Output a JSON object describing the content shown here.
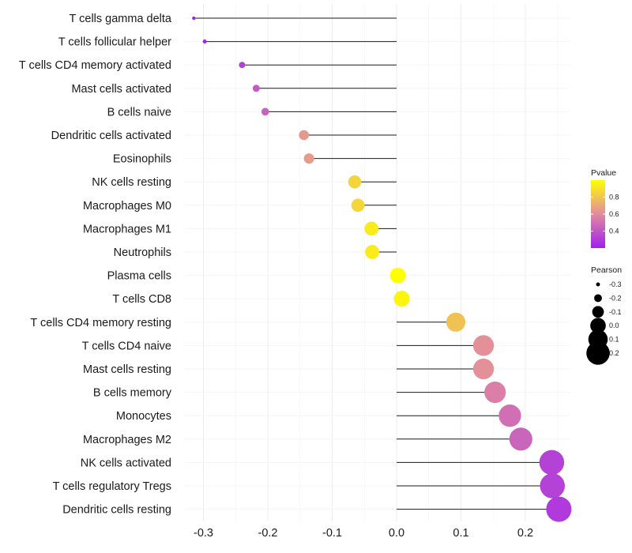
{
  "chart_data": {
    "type": "lollipop",
    "title": "",
    "xlabel": "",
    "ylabel": "",
    "xlim": [
      -0.33,
      0.27
    ],
    "xticks": [
      -0.3,
      -0.2,
      -0.1,
      0.0,
      0.1,
      0.2
    ],
    "xtick_labels": [
      "-0.3",
      "-0.2",
      "-0.1",
      "0.0",
      "0.1",
      "0.2"
    ],
    "categories": [
      "T cells gamma delta",
      "T cells follicular helper",
      "T cells CD4 memory activated",
      "Mast cells activated",
      "B cells naive",
      "Dendritic cells activated",
      "Eosinophils",
      "NK cells resting",
      "Macrophages M0",
      "Macrophages M1",
      "Neutrophils",
      "Plasma cells",
      "T cells CD8",
      "T cells CD4 memory resting",
      "T cells CD4 naive",
      "Mast cells resting",
      "B cells memory",
      "Monocytes",
      "Macrophages M2",
      "NK cells activated",
      "T cells regulatory  Tregs ",
      "Dendritic cells resting"
    ],
    "pearson": [
      -0.315,
      -0.298,
      -0.24,
      -0.218,
      -0.204,
      -0.144,
      -0.136,
      -0.065,
      -0.06,
      -0.039,
      -0.038,
      0.002,
      0.008,
      0.092,
      0.135,
      0.135,
      0.153,
      0.176,
      0.193,
      0.241,
      0.242,
      0.252
    ],
    "pvalue": [
      0.2,
      0.23,
      0.32,
      0.42,
      0.45,
      0.65,
      0.66,
      0.85,
      0.86,
      0.93,
      0.93,
      1.0,
      0.97,
      0.79,
      0.62,
      0.62,
      0.56,
      0.5,
      0.46,
      0.33,
      0.33,
      0.3
    ],
    "color_legend": {
      "title": "Pvalue",
      "ticks": [
        0.4,
        0.6,
        0.8
      ],
      "tick_labels": [
        "0.4",
        "0.6",
        "0.8"
      ],
      "range": [
        0.2,
        1.0
      ],
      "color_low": "#A020F0",
      "color_mid": "#E18AA0",
      "color_high": "#FFFF00"
    },
    "size_legend": {
      "title": "Pearson",
      "values": [
        -0.3,
        -0.2,
        -0.1,
        0.0,
        0.1,
        0.2
      ],
      "labels": [
        "-0.3",
        "-0.2",
        "-0.1",
        "0.0",
        "0.1",
        "0.2"
      ]
    }
  }
}
